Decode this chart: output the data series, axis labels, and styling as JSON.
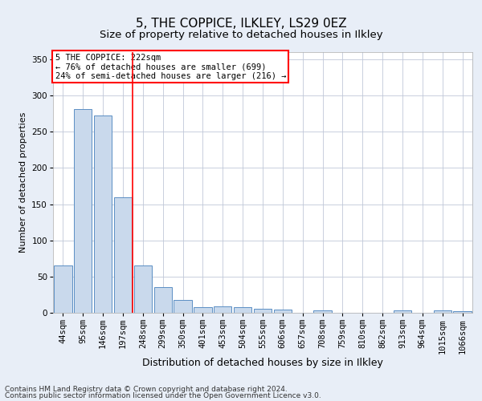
{
  "title": "5, THE COPPICE, ILKLEY, LS29 0EZ",
  "subtitle": "Size of property relative to detached houses in Ilkley",
  "xlabel": "Distribution of detached houses by size in Ilkley",
  "ylabel": "Number of detached properties",
  "footer1": "Contains HM Land Registry data © Crown copyright and database right 2024.",
  "footer2": "Contains public sector information licensed under the Open Government Licence v3.0.",
  "annotation_title": "5 THE COPPICE: 222sqm",
  "annotation_line1": "← 76% of detached houses are smaller (699)",
  "annotation_line2": "24% of semi-detached houses are larger (216) →",
  "bar_color": "#c9d9ec",
  "bar_edge_color": "#5b8fc4",
  "vline_color": "red",
  "vline_x": 3.5,
  "categories": [
    "44sqm",
    "95sqm",
    "146sqm",
    "197sqm",
    "248sqm",
    "299sqm",
    "350sqm",
    "401sqm",
    "453sqm",
    "504sqm",
    "555sqm",
    "606sqm",
    "657sqm",
    "708sqm",
    "759sqm",
    "810sqm",
    "862sqm",
    "913sqm",
    "964sqm",
    "1015sqm",
    "1066sqm"
  ],
  "values": [
    65,
    281,
    273,
    160,
    65,
    36,
    18,
    8,
    9,
    8,
    5,
    4,
    0,
    3,
    0,
    0,
    0,
    3,
    0,
    3,
    2
  ],
  "ylim": [
    0,
    360
  ],
  "yticks": [
    0,
    50,
    100,
    150,
    200,
    250,
    300,
    350
  ],
  "bg_color": "#e8eef7",
  "plot_bg_color": "#ffffff",
  "grid_color": "#c0c8d8",
  "title_fontsize": 11,
  "subtitle_fontsize": 9.5,
  "xlabel_fontsize": 9,
  "ylabel_fontsize": 8,
  "tick_fontsize": 7.5,
  "footer_fontsize": 6.5,
  "annotation_fontsize": 7.5
}
